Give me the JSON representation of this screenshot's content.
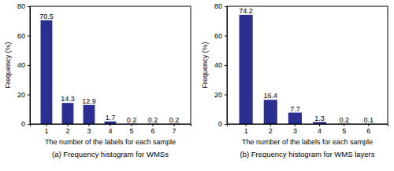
{
  "chart_data": [
    {
      "type": "bar",
      "title": "(a) Frequency histogram for WMSs",
      "x_label": "The number of the labels for each sample",
      "y_label": "Frequency (%)",
      "categories": [
        "1",
        "2",
        "3",
        "4",
        "5",
        "6",
        "7"
      ],
      "values": [
        70.5,
        14.3,
        12.9,
        1.7,
        0.2,
        0.2,
        0.2
      ],
      "color": "#2b2f8f",
      "ylim": [
        0,
        80
      ],
      "yticks": [
        0,
        20,
        40,
        60,
        80
      ],
      "data_labels": true,
      "grid": false
    },
    {
      "type": "bar",
      "title": "(b) Frequency histogram for WMS layers",
      "x_label": "The number of the labels for each sample",
      "y_label": "Frequency (%)",
      "categories": [
        "1",
        "2",
        "3",
        "4",
        "5",
        "6"
      ],
      "values": [
        74.2,
        16.4,
        7.7,
        1.3,
        0.2,
        0.1
      ],
      "color": "#2b2f8f",
      "ylim": [
        0,
        80
      ],
      "yticks": [
        0,
        20,
        40,
        60,
        80
      ],
      "data_labels": true,
      "grid": false
    }
  ]
}
